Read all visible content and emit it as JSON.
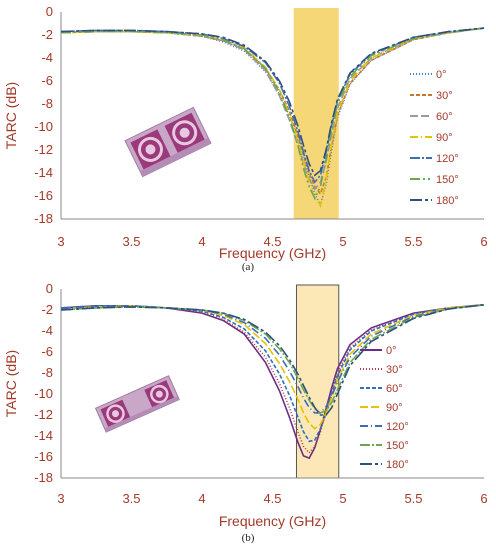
{
  "chart_data": [
    {
      "type": "line",
      "panel_label": "(a)",
      "xlabel": "Frequency (GHz)",
      "ylabel": "TARC (dB)",
      "xlim": [
        3,
        6
      ],
      "ylim": [
        -18,
        0
      ],
      "xticks": [
        "3",
        "3.5",
        "4",
        "4.5",
        "5",
        "5.5",
        "6"
      ],
      "yticks": [
        "0",
        "-2",
        "-4",
        "-6",
        "-8",
        "-10",
        "-12",
        "-14",
        "-16",
        "-18"
      ],
      "highlight_band": [
        4.65,
        4.97
      ],
      "highlight_style": "filled",
      "legend_position": "right",
      "grid": false,
      "x": [
        3,
        3.25,
        3.5,
        3.75,
        4,
        4.15,
        4.3,
        4.45,
        4.55,
        4.62,
        4.68,
        4.72,
        4.76,
        4.8,
        4.84,
        4.88,
        4.92,
        4.96,
        5.05,
        5.2,
        5.5,
        5.75,
        6
      ],
      "series": [
        {
          "name": "0°",
          "color": "#4a7fd0",
          "dash": "1 2",
          "values": [
            -1.8,
            -1.7,
            -1.7,
            -1.8,
            -2.1,
            -2.6,
            -3.4,
            -5.2,
            -7.2,
            -9.0,
            -11.2,
            -12.8,
            -14.3,
            -15.8,
            -16.8,
            -15.0,
            -12.0,
            -9.2,
            -6.3,
            -4.2,
            -2.4,
            -1.8,
            -1.4
          ]
        },
        {
          "name": "30°",
          "color": "#c47a2c",
          "dash": "4 2",
          "values": [
            -1.8,
            -1.7,
            -1.7,
            -1.8,
            -2.1,
            -2.5,
            -3.2,
            -4.9,
            -6.8,
            -8.6,
            -10.8,
            -12.4,
            -14.0,
            -15.2,
            -15.8,
            -14.4,
            -11.6,
            -9.0,
            -6.2,
            -4.2,
            -2.4,
            -1.8,
            -1.4
          ]
        },
        {
          "name": "60°",
          "color": "#9a9a9a",
          "dash": "8 3",
          "values": [
            -1.8,
            -1.7,
            -1.7,
            -1.8,
            -2.1,
            -2.5,
            -3.3,
            -5.1,
            -7.3,
            -9.4,
            -11.6,
            -13.2,
            -14.6,
            -15.4,
            -14.8,
            -13.0,
            -10.6,
            -8.4,
            -5.8,
            -4.0,
            -2.3,
            -1.8,
            -1.4
          ]
        },
        {
          "name": "90°",
          "color": "#e6c200",
          "dash": "8 3 1 3",
          "values": [
            -1.8,
            -1.7,
            -1.7,
            -1.8,
            -2.0,
            -2.4,
            -3.1,
            -4.8,
            -6.8,
            -8.9,
            -11.2,
            -13.0,
            -14.8,
            -16.2,
            -16.8,
            -14.6,
            -11.4,
            -8.8,
            -6.0,
            -4.0,
            -2.3,
            -1.8,
            -1.4
          ]
        },
        {
          "name": "120°",
          "color": "#3f6db5",
          "dash": "10 2 2 2",
          "values": [
            -1.7,
            -1.6,
            -1.6,
            -1.7,
            -1.9,
            -2.3,
            -3.0,
            -4.4,
            -6.2,
            -8.2,
            -10.4,
            -12.2,
            -13.8,
            -14.8,
            -14.2,
            -12.2,
            -9.8,
            -7.8,
            -5.4,
            -3.7,
            -2.2,
            -1.7,
            -1.4
          ]
        },
        {
          "name": "150°",
          "color": "#6aa84f",
          "dash": "10 3 2 3 2 3",
          "values": [
            -1.8,
            -1.7,
            -1.7,
            -1.8,
            -2.0,
            -2.4,
            -3.2,
            -4.9,
            -7.0,
            -9.2,
            -11.6,
            -13.6,
            -15.2,
            -16.2,
            -15.2,
            -12.8,
            -10.2,
            -8.0,
            -5.6,
            -3.8,
            -2.3,
            -1.8,
            -1.4
          ]
        },
        {
          "name": "180°",
          "color": "#2f4f7f",
          "dash": "12 3 3 3",
          "values": [
            -1.7,
            -1.6,
            -1.6,
            -1.7,
            -1.9,
            -2.2,
            -2.9,
            -4.3,
            -6.0,
            -7.8,
            -9.9,
            -11.6,
            -13.2,
            -14.2,
            -13.8,
            -12.0,
            -9.6,
            -7.6,
            -5.3,
            -3.6,
            -2.2,
            -1.7,
            -1.4
          ]
        }
      ]
    },
    {
      "type": "line",
      "panel_label": "(b)",
      "xlabel": "Frequency (GHz)",
      "ylabel": "TARC (dB)",
      "xlim": [
        3,
        6
      ],
      "ylim": [
        -18,
        0
      ],
      "xticks": [
        "3",
        "3.5",
        "4",
        "4.5",
        "5",
        "5.5",
        "6"
      ],
      "yticks": [
        "0",
        "-2",
        "-4",
        "-6",
        "-8",
        "-10",
        "-12",
        "-14",
        "-16",
        "-18"
      ],
      "highlight_band": [
        4.67,
        4.97
      ],
      "highlight_style": "outlined",
      "legend_position": "right",
      "grid": false,
      "x": [
        3,
        3.25,
        3.5,
        3.75,
        4,
        4.15,
        4.3,
        4.45,
        4.55,
        4.62,
        4.68,
        4.72,
        4.76,
        4.8,
        4.84,
        4.88,
        4.92,
        4.96,
        5.05,
        5.2,
        5.5,
        5.75,
        6
      ],
      "series": [
        {
          "name": "0°",
          "color": "#6b2d86",
          "dash": "",
          "values": [
            -1.8,
            -1.6,
            -1.6,
            -1.8,
            -2.3,
            -3.0,
            -4.3,
            -7.0,
            -9.7,
            -12.2,
            -14.6,
            -15.9,
            -16.1,
            -15.1,
            -13.4,
            -11.4,
            -9.4,
            -7.6,
            -5.3,
            -3.7,
            -2.3,
            -1.8,
            -1.5
          ]
        },
        {
          "name": "30°",
          "color": "#b03a48",
          "dash": "1 2",
          "values": [
            -1.8,
            -1.6,
            -1.6,
            -1.8,
            -2.2,
            -2.9,
            -4.1,
            -6.5,
            -9.0,
            -11.3,
            -13.6,
            -15.0,
            -15.6,
            -15.0,
            -13.6,
            -11.8,
            -9.8,
            -8.0,
            -5.6,
            -3.9,
            -2.4,
            -1.8,
            -1.5
          ]
        },
        {
          "name": "60°",
          "color": "#2e6fc0",
          "dash": "4 2",
          "values": [
            -1.8,
            -1.6,
            -1.6,
            -1.8,
            -2.1,
            -2.7,
            -3.8,
            -5.9,
            -8.1,
            -10.1,
            -12.2,
            -13.6,
            -14.5,
            -14.4,
            -13.3,
            -11.8,
            -10.0,
            -8.3,
            -5.8,
            -4.0,
            -2.4,
            -1.8,
            -1.5
          ]
        },
        {
          "name": "90°",
          "color": "#e6c200",
          "dash": "8 3",
          "values": [
            -1.9,
            -1.7,
            -1.6,
            -1.8,
            -2.0,
            -2.5,
            -3.4,
            -5.2,
            -7.1,
            -8.8,
            -10.5,
            -11.8,
            -12.8,
            -13.3,
            -12.9,
            -11.8,
            -10.3,
            -8.7,
            -6.2,
            -4.3,
            -2.5,
            -1.8,
            -1.5
          ]
        },
        {
          "name": "120°",
          "color": "#3f6db5",
          "dash": "8 3 1 3",
          "values": [
            -1.9,
            -1.7,
            -1.6,
            -1.8,
            -2.0,
            -2.4,
            -3.2,
            -4.7,
            -6.3,
            -7.8,
            -9.3,
            -10.4,
            -11.3,
            -11.8,
            -11.8,
            -11.2,
            -10.2,
            -8.9,
            -6.5,
            -4.5,
            -2.6,
            -1.9,
            -1.5
          ]
        },
        {
          "name": "150°",
          "color": "#6aa84f",
          "dash": "10 2 2 2",
          "values": [
            -2.0,
            -1.8,
            -1.7,
            -1.8,
            -2.0,
            -2.3,
            -3.0,
            -4.3,
            -5.7,
            -7.0,
            -8.5,
            -9.6,
            -10.6,
            -11.4,
            -11.8,
            -11.6,
            -10.8,
            -9.6,
            -7.0,
            -4.8,
            -2.7,
            -1.9,
            -1.5
          ]
        },
        {
          "name": "180°",
          "color": "#2f4f7f",
          "dash": "12 3 3 3",
          "values": [
            -2.0,
            -1.8,
            -1.7,
            -1.8,
            -2.0,
            -2.3,
            -2.9,
            -4.1,
            -5.4,
            -6.7,
            -8.1,
            -9.2,
            -10.3,
            -11.3,
            -12.0,
            -12.0,
            -11.3,
            -10.0,
            -7.3,
            -5.0,
            -2.8,
            -1.9,
            -1.5
          ]
        }
      ]
    }
  ]
}
